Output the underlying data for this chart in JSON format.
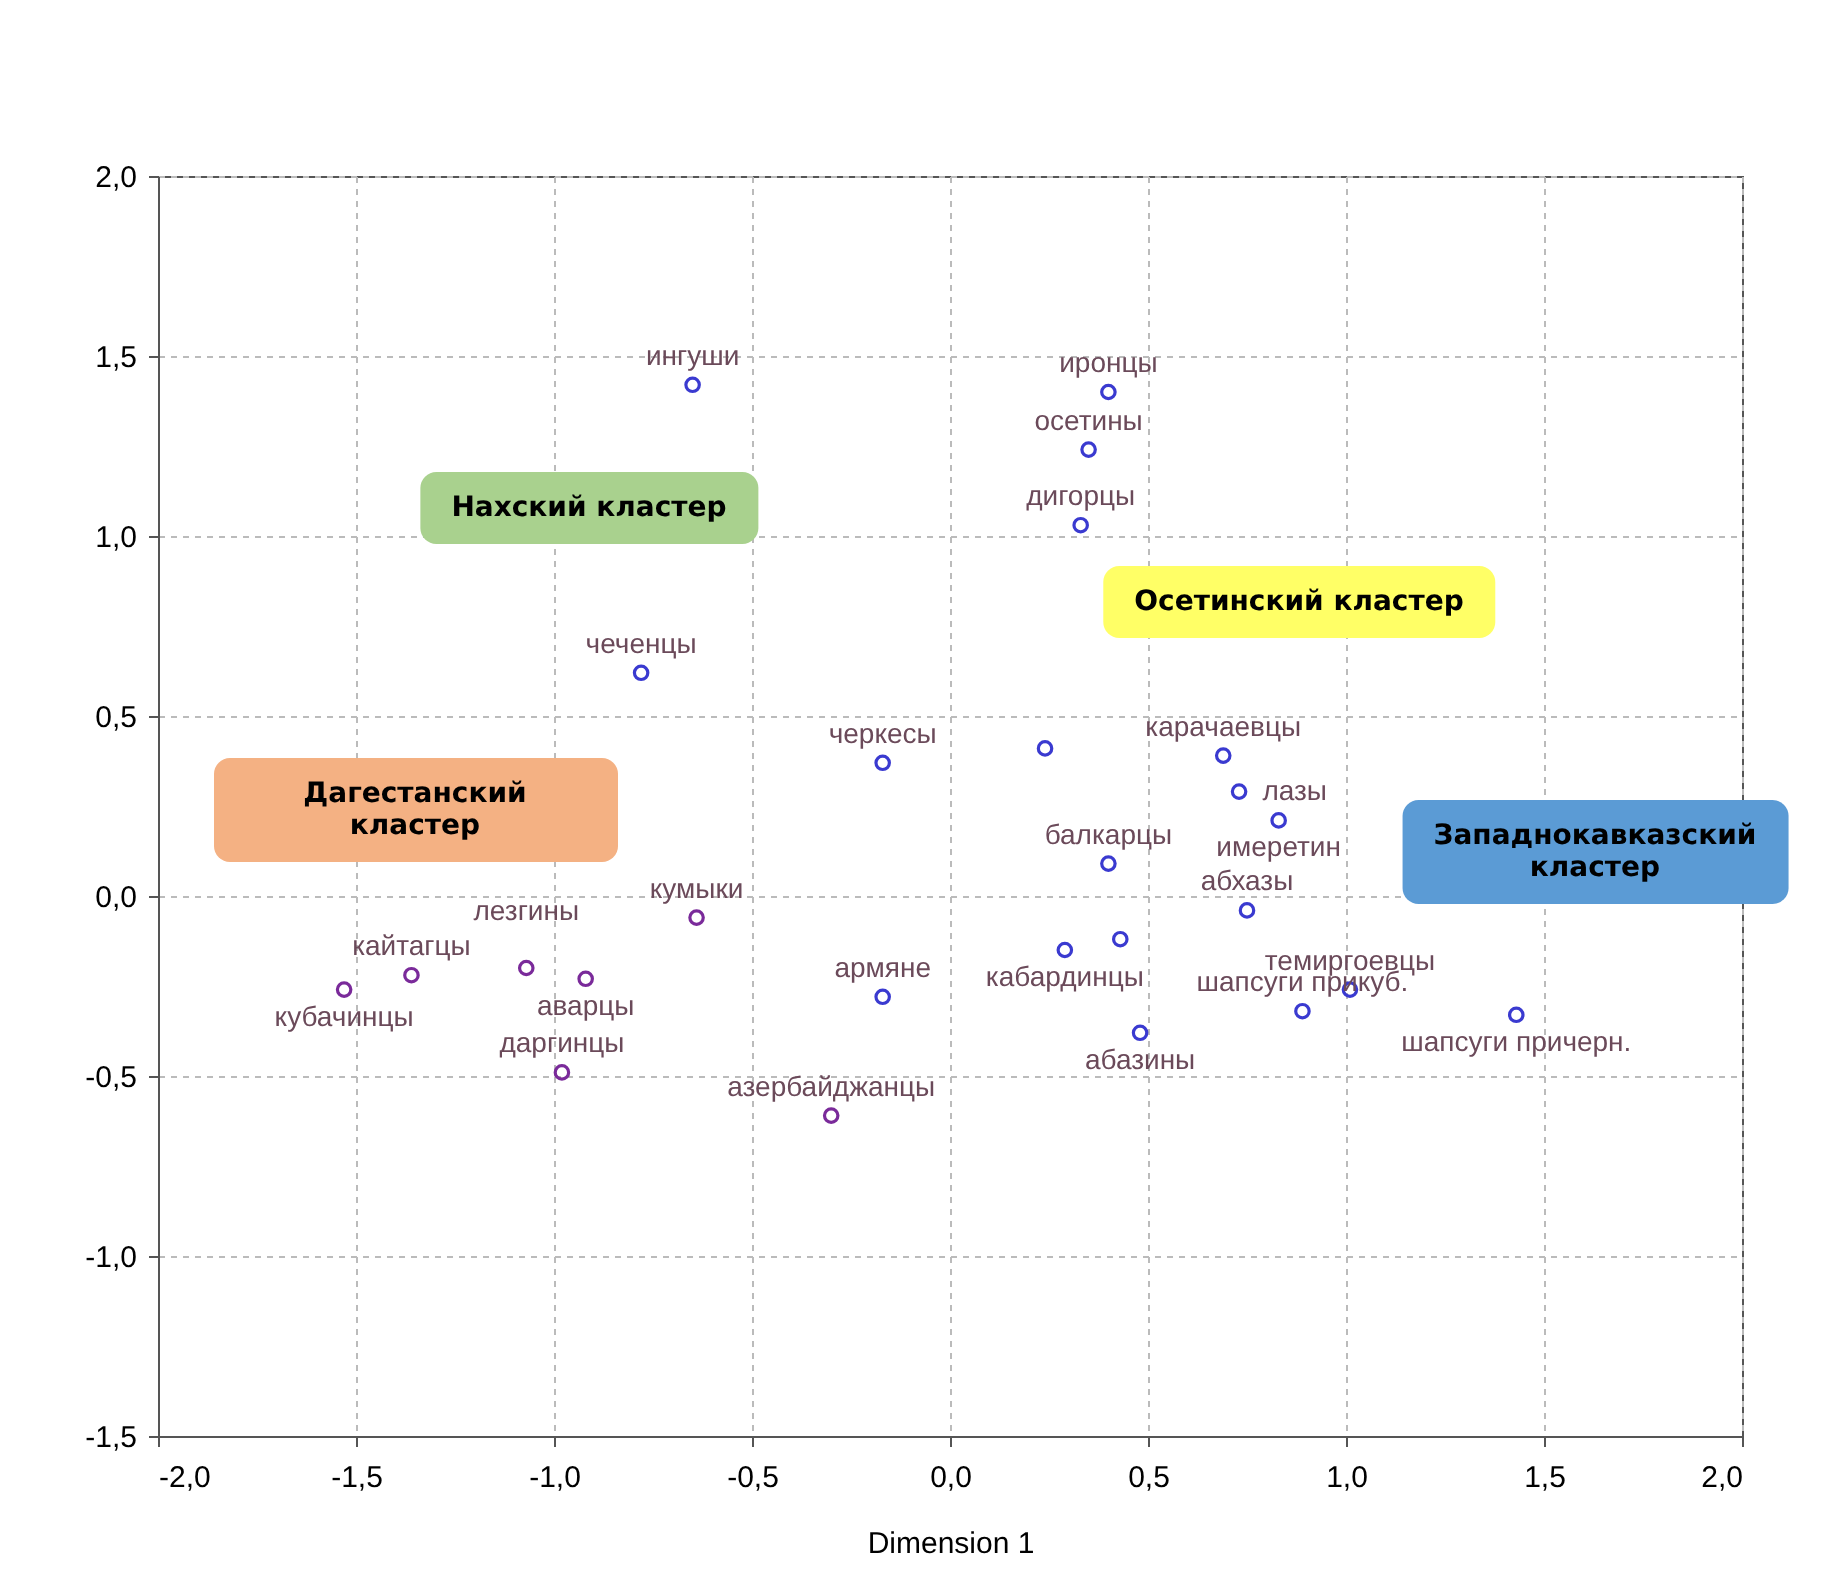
{
  "chart_data": {
    "type": "scatter",
    "xlabel": "Dimension 1",
    "xlim": [
      -2,
      2
    ],
    "ylim": [
      -1.5,
      2
    ],
    "xticks": [
      {
        "value": -2,
        "label": "-2,0"
      },
      {
        "value": -1.5,
        "label": "-1,5"
      },
      {
        "value": -1,
        "label": "-1,0"
      },
      {
        "value": -0.5,
        "label": "-0,5"
      },
      {
        "value": 0,
        "label": "0,0"
      },
      {
        "value": 0.5,
        "label": "0,5"
      },
      {
        "value": 1,
        "label": "1,0"
      },
      {
        "value": 1.5,
        "label": "1,5"
      },
      {
        "value": 2,
        "label": "2,0"
      }
    ],
    "yticks": [
      {
        "value": -1.5,
        "label": "-1,5"
      },
      {
        "value": -1,
        "label": "-1,0"
      },
      {
        "value": -0.5,
        "label": "-0,5"
      },
      {
        "value": 0,
        "label": "0,0"
      },
      {
        "value": 0.5,
        "label": "0,5"
      },
      {
        "value": 1,
        "label": "1,0"
      },
      {
        "value": 1.5,
        "label": "1,5"
      },
      {
        "value": 2,
        "label": "2,0"
      }
    ],
    "grid": true,
    "marker": "circle",
    "series": [
      {
        "color": "#7a2a9a",
        "x": [
          -0.64,
          -1.36,
          -1.53,
          -1.07,
          -0.92,
          -0.98,
          -0.3
        ],
        "values": [
          -0.06,
          -0.22,
          -0.26,
          -0.2,
          -0.23,
          -0.49,
          -0.61
        ]
      },
      {
        "color": "#3a3ad0",
        "x": [
          -0.65,
          -0.78,
          0.4,
          0.35,
          0.33,
          -0.17,
          0.24,
          0.69,
          0.73,
          0.83,
          0.4,
          0.75,
          0.29,
          0.43,
          -0.17,
          0.48,
          1.01,
          0.89,
          1.43
        ],
        "values": [
          1.42,
          0.62,
          1.4,
          1.24,
          1.03,
          0.37,
          0.41,
          0.39,
          0.29,
          0.21,
          0.09,
          -0.04,
          -0.15,
          -0.12,
          -0.28,
          -0.38,
          -0.26,
          -0.32,
          -0.33
        ]
      }
    ],
    "annotations": [
      "Нахский кластер",
      "Дагестанский кластер",
      "Осетинский кластер",
      "Западнокавказский кластер",
      {
        "text": "ингуши",
        "x": -0.65,
        "y": 1.42
      },
      {
        "text": "чеченцы",
        "x": -0.78,
        "y": 0.62
      },
      {
        "text": "кумыки",
        "x": -0.64,
        "y": -0.06
      },
      {
        "text": "кайтагцы",
        "x": -1.36,
        "y": -0.22
      },
      {
        "text": "лезгины",
        "x": -1.07,
        "y": -0.2
      },
      {
        "text": "кубачинцы",
        "x": -1.53,
        "y": -0.26
      },
      {
        "text": "аварцы",
        "x": -0.92,
        "y": -0.23
      },
      {
        "text": "даргинцы",
        "x": -0.98,
        "y": -0.49
      },
      {
        "text": "азербайджанцы",
        "x": -0.3,
        "y": -0.61
      },
      {
        "text": "иронцы",
        "x": 0.4,
        "y": 1.4
      },
      {
        "text": "осетины",
        "x": 0.35,
        "y": 1.24
      },
      {
        "text": "дигорцы",
        "x": 0.33,
        "y": 1.03
      },
      {
        "text": "карачаевцы",
        "x": 0.69,
        "y": 0.39
      },
      {
        "text": "черкесы",
        "x": -0.17,
        "y": 0.37
      },
      {
        "text": "лазы",
        "x": 0.73,
        "y": 0.29
      },
      {
        "text": "балкарцы",
        "x": 0.4,
        "y": 0.09
      },
      {
        "text": "имеретин",
        "x": 0.83,
        "y": 0.21
      },
      {
        "text": "абхазы",
        "x": 0.75,
        "y": -0.04
      },
      {
        "text": "кабардинцы",
        "x": 0.29,
        "y": -0.15
      },
      {
        "text": "темиргоевцы",
        "x": 1.01,
        "y": -0.26
      },
      {
        "text": "армяне",
        "x": -0.17,
        "y": -0.28
      },
      {
        "text": "абазины",
        "x": 0.48,
        "y": -0.38
      },
      {
        "text": "шапсуги причерн.",
        "x": 1.43,
        "y": -0.33
      },
      {
        "text": "шапсуги прикуб.",
        "x": 0.89,
        "y": -0.32
      }
    ]
  }
}
